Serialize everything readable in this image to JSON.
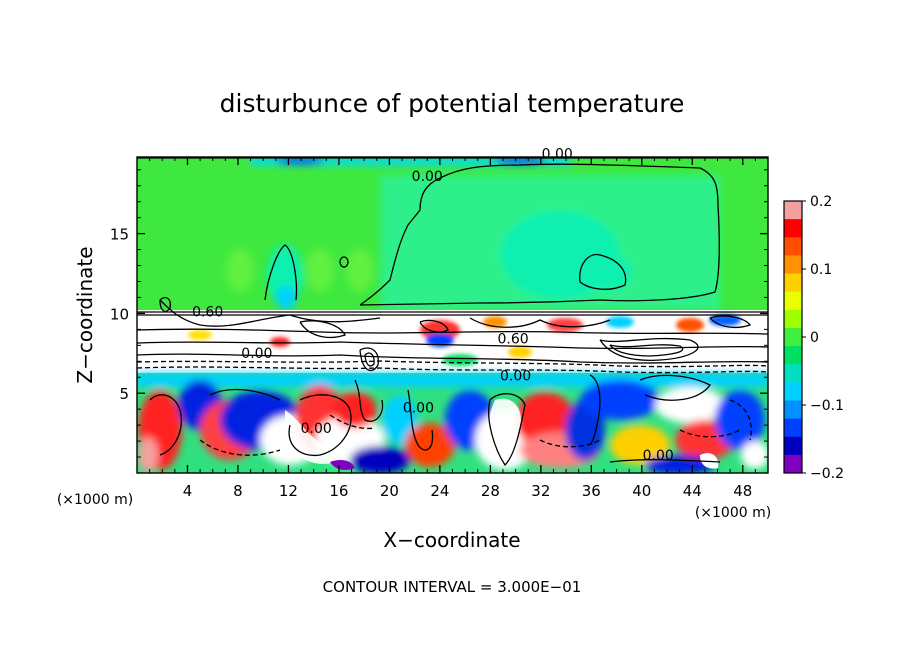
{
  "chart_data": {
    "type": "heatmap",
    "title": "disturbunce of potential temperature",
    "xlabel": "X−coordinate",
    "ylabel": "Z−coordinate",
    "x_unit": "(×1000 m)",
    "y_unit": "(×1000 m)",
    "xlim": [
      0,
      50
    ],
    "ylim": [
      0,
      19.8
    ],
    "x_ticks": [
      "4",
      "8",
      "12",
      "16",
      "20",
      "24",
      "28",
      "32",
      "36",
      "40",
      "44",
      "48"
    ],
    "x_tick_values": [
      4,
      8,
      12,
      16,
      20,
      24,
      28,
      32,
      36,
      40,
      44,
      48
    ],
    "y_ticks": [
      "5",
      "10",
      "15"
    ],
    "y_tick_values": [
      5,
      10,
      15
    ],
    "colorbar": {
      "min": -0.2,
      "max": 0.2,
      "tick_labels": [
        "0.2",
        "0.1",
        "0",
        "−0.1",
        "−0.2"
      ],
      "tick_values": [
        0.2,
        0.1,
        0,
        -0.1,
        -0.2
      ],
      "colors": [
        "#f5a0a0",
        "#ff0000",
        "#ff5000",
        "#ff9000",
        "#ffd000",
        "#e8ff00",
        "#a0ff00",
        "#40f040",
        "#00e060",
        "#00e0c0",
        "#00d0ff",
        "#0090ff",
        "#0040ff",
        "#0000c0",
        "#8000c0"
      ]
    },
    "contour_labels": [
      {
        "text": "0.00",
        "x": 23.0,
        "z": 18.3
      },
      {
        "text": "0.00",
        "x": 33.3,
        "z": 19.7
      },
      {
        "text": "0.60",
        "x": 5.6,
        "z": 9.8
      },
      {
        "text": "0.00",
        "x": 9.5,
        "z": 7.2
      },
      {
        "text": "0.60",
        "x": 29.8,
        "z": 8.1
      },
      {
        "text": "0.00",
        "x": 30.0,
        "z": 5.8
      },
      {
        "text": "0.00",
        "x": 22.3,
        "z": 3.8
      },
      {
        "text": "0.00",
        "x": 14.2,
        "z": 2.5
      },
      {
        "text": "0.00",
        "x": 41.3,
        "z": 0.8
      }
    ],
    "footer": "CONTOUR INTERVAL = 3.000E−01"
  }
}
